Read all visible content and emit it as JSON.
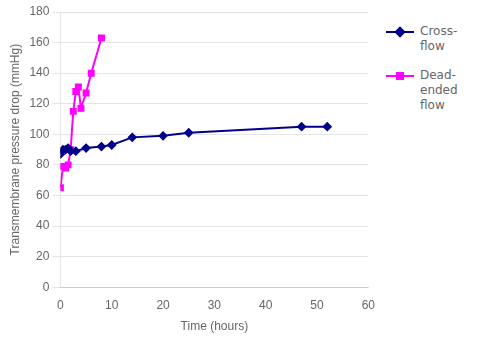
{
  "chart_data": {
    "type": "line",
    "xlabel": "Time (hours)",
    "ylabel": "Transmembrane pressure drop (mmHg)",
    "series": [
      {
        "name": "Cross-\nflow",
        "color": "#00008B",
        "marker": "diamond",
        "x": [
          0,
          0.5,
          1,
          1.5,
          2,
          3,
          5,
          8,
          10,
          14,
          20,
          25,
          47,
          52
        ],
        "values": [
          87,
          90,
          90,
          91,
          89,
          89,
          91,
          92,
          93,
          98,
          99,
          101,
          105,
          105
        ]
      },
      {
        "name": "Dead-\nended\nflow",
        "color": "#FF00FF",
        "marker": "square",
        "x": [
          0,
          0.5,
          1,
          1.5,
          2,
          2.5,
          3,
          3.5,
          4,
          5,
          6,
          8
        ],
        "values": [
          65,
          79,
          78,
          80,
          90,
          115,
          128,
          131,
          117,
          127,
          140,
          163
        ]
      }
    ],
    "xlim": [
      0,
      60
    ],
    "ylim": [
      0,
      180
    ],
    "xticks": [
      0,
      10,
      20,
      30,
      40,
      50,
      60
    ],
    "yticks": [
      0,
      20,
      40,
      60,
      80,
      100,
      120,
      140,
      160,
      180
    ],
    "grid": "y",
    "legend": "right"
  }
}
